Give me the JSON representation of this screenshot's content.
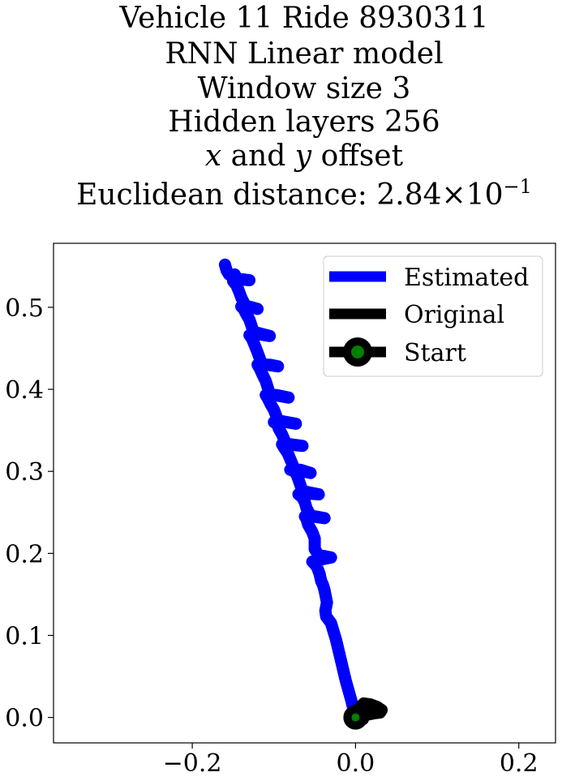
{
  "chart_data": {
    "type": "line",
    "title_lines": [
      "Vehicle 11 Ride 8930311",
      "RNN Linear model",
      "Window size 3",
      "Hidden layers 256"
    ],
    "offset_line": {
      "x_var": "x",
      "middle": " and ",
      "y_var": "y",
      "suffix": " offset"
    },
    "distance_line": {
      "prefix": "Euclidean distance: ",
      "mantissa": "2.84",
      "times": "×",
      "base": "10",
      "exponent": "−1"
    },
    "xlim": [
      -0.37,
      0.245
    ],
    "ylim": [
      -0.031,
      0.578
    ],
    "xticks": [
      -0.2,
      0.0,
      0.2
    ],
    "xtick_labels": [
      "−0.2",
      "0.0",
      "0.2"
    ],
    "yticks": [
      0.0,
      0.1,
      0.2,
      0.3,
      0.4,
      0.5
    ],
    "ytick_labels": [
      "0.0",
      "0.1",
      "0.2",
      "0.3",
      "0.4",
      "0.5"
    ],
    "legend_position": "upper right",
    "series": [
      {
        "name": "Estimated",
        "color": "#0000ff",
        "x": [
          0.0,
          -0.005,
          -0.012,
          -0.018,
          -0.024,
          -0.03,
          -0.036,
          -0.037,
          -0.035,
          -0.038,
          -0.04,
          -0.042,
          -0.044,
          -0.047,
          -0.05,
          -0.053,
          -0.045,
          -0.03,
          -0.045,
          -0.05,
          -0.05,
          -0.053,
          -0.058,
          -0.06,
          -0.062,
          -0.052,
          -0.038,
          -0.055,
          -0.06,
          -0.062,
          -0.065,
          -0.07,
          -0.058,
          -0.045,
          -0.065,
          -0.07,
          -0.072,
          -0.075,
          -0.08,
          -0.068,
          -0.055,
          -0.075,
          -0.08,
          -0.083,
          -0.087,
          -0.09,
          -0.08,
          -0.065,
          -0.085,
          -0.09,
          -0.094,
          -0.096,
          -0.1,
          -0.085,
          -0.073,
          -0.095,
          -0.1,
          -0.104,
          -0.108,
          -0.11,
          -0.097,
          -0.082,
          -0.105,
          -0.11,
          -0.114,
          -0.117,
          -0.12,
          -0.105,
          -0.095,
          -0.115,
          -0.12,
          -0.124,
          -0.127,
          -0.13,
          -0.117,
          -0.105,
          -0.125,
          -0.13,
          -0.134,
          -0.137,
          -0.14,
          -0.127,
          -0.12,
          -0.135,
          -0.14,
          -0.143,
          -0.146,
          -0.15,
          -0.14,
          -0.13,
          -0.145,
          -0.148,
          -0.15,
          -0.155,
          -0.158,
          -0.16
        ],
        "y": [
          0.0,
          0.02,
          0.045,
          0.07,
          0.095,
          0.115,
          0.123,
          0.13,
          0.14,
          0.155,
          0.162,
          0.166,
          0.175,
          0.183,
          0.187,
          0.19,
          0.192,
          0.195,
          0.198,
          0.205,
          0.218,
          0.226,
          0.235,
          0.242,
          0.245,
          0.245,
          0.243,
          0.246,
          0.255,
          0.262,
          0.268,
          0.272,
          0.273,
          0.272,
          0.276,
          0.29,
          0.296,
          0.3,
          0.302,
          0.302,
          0.298,
          0.303,
          0.315,
          0.322,
          0.328,
          0.333,
          0.333,
          0.331,
          0.333,
          0.345,
          0.352,
          0.358,
          0.36,
          0.36,
          0.358,
          0.362,
          0.375,
          0.382,
          0.39,
          0.393,
          0.393,
          0.39,
          0.394,
          0.41,
          0.418,
          0.425,
          0.43,
          0.43,
          0.428,
          0.431,
          0.445,
          0.455,
          0.462,
          0.466,
          0.467,
          0.465,
          0.47,
          0.485,
          0.492,
          0.498,
          0.501,
          0.5,
          0.498,
          0.502,
          0.512,
          0.52,
          0.527,
          0.532,
          0.534,
          0.533,
          0.535,
          0.54,
          0.538,
          0.54,
          0.545,
          0.552
        ]
      },
      {
        "name": "Original",
        "color": "#000000",
        "x": [
          0.0,
          0.003,
          0.01,
          0.018,
          0.026,
          0.032,
          0.03,
          0.022,
          0.012,
          0.005,
          0.002,
          0.004,
          0.009,
          0.005,
          0.0
        ],
        "y": [
          0.0,
          0.01,
          0.017,
          0.016,
          0.013,
          0.009,
          0.006,
          0.005,
          0.003,
          0.001,
          -0.002,
          -0.004,
          -0.002,
          0.004,
          0.0
        ]
      }
    ],
    "start_point": {
      "name": "Start",
      "x": 0.0,
      "y": 0.0,
      "face_color": "#008000",
      "edge_color": "#000000"
    }
  }
}
